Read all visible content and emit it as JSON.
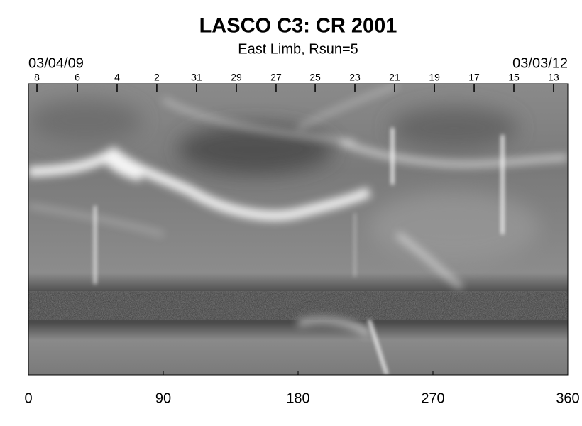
{
  "chart_data": {
    "type": "synoptic-map",
    "title": "LASCO C3: CR 2001",
    "subtitle": "East Limb, Rsun=5",
    "start_date": "03/04/09",
    "end_date": "03/03/12",
    "xlim": [
      0,
      360
    ],
    "xticks": [
      0,
      90,
      180,
      270,
      360
    ],
    "top_ticks": [
      {
        "value": 5.7,
        "label": "8"
      },
      {
        "value": 32.7,
        "label": "6"
      },
      {
        "value": 59.2,
        "label": "4"
      },
      {
        "value": 85.7,
        "label": "2"
      },
      {
        "value": 112.2,
        "label": "31"
      },
      {
        "value": 138.8,
        "label": "29"
      },
      {
        "value": 165.3,
        "label": "27"
      },
      {
        "value": 191.4,
        "label": "25"
      },
      {
        "value": 217.9,
        "label": "23"
      },
      {
        "value": 244.4,
        "label": "21"
      },
      {
        "value": 271,
        "label": "19"
      },
      {
        "value": 297.5,
        "label": "17"
      },
      {
        "value": 324,
        "label": "15"
      },
      {
        "value": 350.5,
        "label": "13"
      }
    ]
  }
}
